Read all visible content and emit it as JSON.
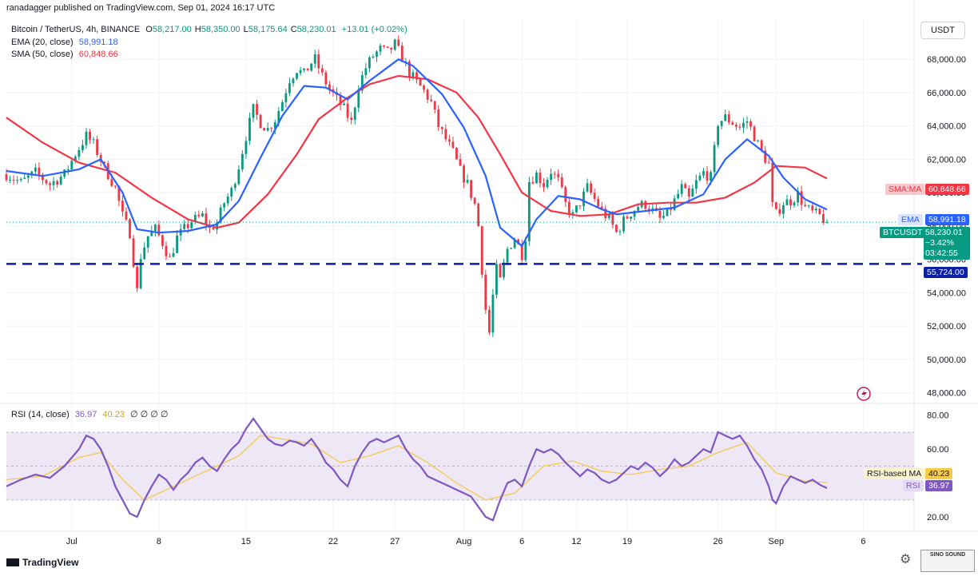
{
  "header": {
    "published_line": "ranadagger published on TradingView.com, Sep 01, 2024 16:17 UTC"
  },
  "legend": {
    "symbol": "Bitcoin / TetherUS, 4h, BINANCE",
    "ohlc": [
      {
        "k": "O",
        "v": "58,217.00"
      },
      {
        "k": "H",
        "v": "58,350.00"
      },
      {
        "k": "L",
        "v": "58,175.64"
      },
      {
        "k": "C",
        "v": "58,230.01"
      }
    ],
    "change": "+13.01 (+0.02%)",
    "ema_label": "EMA (20, close)",
    "ema_value": "58,991.18",
    "sma_label": "SMA (50, close)",
    "sma_value": "60,848.66"
  },
  "currency_button": "USDT",
  "price_tags": {
    "sma": {
      "label": "SMA:MA",
      "value": "60,848.66"
    },
    "ema": {
      "label": "EMA",
      "value": "58,991.18"
    },
    "last": {
      "label": "BTCUSDT",
      "value": "58,230.01",
      "change": "−3.42%",
      "countdown": "03:42:55"
    },
    "support": {
      "value": "55,724.00"
    }
  },
  "rsi_legend": {
    "label": "RSI (14, close)",
    "rsi": "36.97",
    "ma": "40.23",
    "extras": "∅ ∅ ∅ ∅"
  },
  "rsi_tags": {
    "ma_label": "RSI-based MA",
    "ma_value": "40.23",
    "rsi_label": "RSI",
    "rsi_value": "36.97"
  },
  "footer": {
    "brand": "TradingView"
  },
  "watermark_text": "SINO SOUND",
  "colors": {
    "up": "#089981",
    "down": "#f23645",
    "ema": "#2962ff",
    "sma": "#f23645",
    "support": "#0c1fa6",
    "rsi": "#7e57c2",
    "rsi_ma": "#f7c948",
    "band": "#ede7f6"
  },
  "chart_data": [
    {
      "type": "candlestick",
      "title": "Bitcoin / TetherUS, 4h, BINANCE",
      "x_tick_labels": [
        "Jul",
        "8",
        "15",
        "22",
        "27",
        "Aug",
        "6",
        "12",
        "19",
        "26",
        "Sep",
        "6"
      ],
      "y_ticks": [
        48000,
        50000,
        52000,
        54000,
        56000,
        58000,
        60000,
        62000,
        64000,
        66000,
        68000
      ],
      "y_tick_labels": [
        "48,000.00",
        "50,000.00",
        "52,000.00",
        "54,000.00",
        "56,000.00",
        "58,000.00",
        "60,000.00",
        "62,000.00",
        "64,000.00",
        "66,000.00",
        "68,000.00"
      ],
      "ylim": [
        47500,
        70500
      ],
      "support_level": 55724,
      "close_path": [
        [
          0,
          61100
        ],
        [
          4,
          60600
        ],
        [
          8,
          61200
        ],
        [
          12,
          60500
        ],
        [
          16,
          61100
        ],
        [
          19,
          62300
        ],
        [
          22,
          63400
        ],
        [
          24,
          62900
        ],
        [
          27,
          61500
        ],
        [
          30,
          60300
        ],
        [
          32,
          58600
        ],
        [
          34,
          57600
        ],
        [
          35,
          55900
        ],
        [
          36,
          54100
        ],
        [
          37,
          56200
        ],
        [
          39,
          57400
        ],
        [
          41,
          57800
        ],
        [
          43,
          57000
        ],
        [
          45,
          56000
        ],
        [
          47,
          57300
        ],
        [
          49,
          57800
        ],
        [
          51,
          58300
        ],
        [
          54,
          58600
        ],
        [
          56,
          57800
        ],
        [
          58,
          58200
        ],
        [
          60,
          59400
        ],
        [
          62,
          60100
        ],
        [
          64,
          61600
        ],
        [
          66,
          63400
        ],
        [
          68,
          65000
        ],
        [
          70,
          64200
        ],
        [
          72,
          63800
        ],
        [
          74,
          64400
        ],
        [
          76,
          65500
        ],
        [
          78,
          66800
        ],
        [
          80,
          67400
        ],
        [
          82,
          67100
        ],
        [
          84,
          67800
        ],
        [
          85,
          68000
        ],
        [
          87,
          67000
        ],
        [
          89,
          66200
        ],
        [
          91,
          65600
        ],
        [
          93,
          65000
        ],
        [
          95,
          64200
        ],
        [
          97,
          66400
        ],
        [
          99,
          67500
        ],
        [
          101,
          68200
        ],
        [
          103,
          68600
        ],
        [
          105,
          68400
        ],
        [
          107,
          68900
        ],
        [
          109,
          68100
        ],
        [
          111,
          67200
        ],
        [
          113,
          66600
        ],
        [
          115,
          66100
        ],
        [
          117,
          65400
        ],
        [
          119,
          64000
        ],
        [
          121,
          63200
        ],
        [
          123,
          62400
        ],
        [
          125,
          61300
        ],
        [
          127,
          60500
        ],
        [
          129,
          59300
        ],
        [
          130,
          58000
        ],
        [
          131,
          55400
        ],
        [
          132,
          53000
        ],
        [
          133,
          51600
        ],
        [
          134,
          53800
        ],
        [
          135,
          55400
        ],
        [
          136,
          54700
        ],
        [
          138,
          56600
        ],
        [
          140,
          57300
        ],
        [
          142,
          56300
        ],
        [
          143,
          57400
        ],
        [
          144,
          60700
        ],
        [
          146,
          61100
        ],
        [
          148,
          60500
        ],
        [
          150,
          61300
        ],
        [
          152,
          60700
        ],
        [
          154,
          59300
        ],
        [
          156,
          58600
        ],
        [
          158,
          59400
        ],
        [
          160,
          60300
        ],
        [
          162,
          59600
        ],
        [
          164,
          58900
        ],
        [
          166,
          58400
        ],
        [
          168,
          57600
        ],
        [
          170,
          58300
        ],
        [
          172,
          58800
        ],
        [
          174,
          59200
        ],
        [
          176,
          59300
        ],
        [
          178,
          58900
        ],
        [
          180,
          58400
        ],
        [
          182,
          58700
        ],
        [
          184,
          59500
        ],
        [
          186,
          60300
        ],
        [
          188,
          59600
        ],
        [
          190,
          60600
        ],
        [
          192,
          61200
        ],
        [
          194,
          60900
        ],
        [
          196,
          64200
        ],
        [
          198,
          64500
        ],
        [
          200,
          64200
        ],
        [
          202,
          63900
        ],
        [
          204,
          64300
        ],
        [
          206,
          63400
        ],
        [
          208,
          62400
        ],
        [
          210,
          61700
        ],
        [
          211,
          59200
        ],
        [
          212,
          58700
        ],
        [
          214,
          59400
        ],
        [
          216,
          59500
        ],
        [
          218,
          59900
        ],
        [
          220,
          59100
        ],
        [
          222,
          58800
        ],
        [
          224,
          58600
        ],
        [
          226,
          58230
        ]
      ],
      "ema_20": [
        [
          0,
          61300
        ],
        [
          10,
          61000
        ],
        [
          20,
          61400
        ],
        [
          26,
          62000
        ],
        [
          32,
          60000
        ],
        [
          36,
          57800
        ],
        [
          42,
          57600
        ],
        [
          50,
          57700
        ],
        [
          58,
          58100
        ],
        [
          64,
          59500
        ],
        [
          70,
          62100
        ],
        [
          76,
          64600
        ],
        [
          82,
          66400
        ],
        [
          88,
          66300
        ],
        [
          94,
          65600
        ],
        [
          100,
          66700
        ],
        [
          108,
          68000
        ],
        [
          112,
          67600
        ],
        [
          120,
          65900
        ],
        [
          126,
          63900
        ],
        [
          132,
          61000
        ],
        [
          136,
          57900
        ],
        [
          142,
          56800
        ],
        [
          146,
          58400
        ],
        [
          152,
          59800
        ],
        [
          158,
          59600
        ],
        [
          164,
          59000
        ],
        [
          168,
          58700
        ],
        [
          176,
          58900
        ],
        [
          184,
          59100
        ],
        [
          192,
          59900
        ],
        [
          198,
          62000
        ],
        [
          204,
          63200
        ],
        [
          210,
          62200
        ],
        [
          214,
          60900
        ],
        [
          220,
          59600
        ],
        [
          226,
          58991
        ]
      ],
      "sma_50": [
        [
          0,
          64500
        ],
        [
          10,
          63000
        ],
        [
          20,
          61800
        ],
        [
          30,
          61200
        ],
        [
          40,
          59700
        ],
        [
          50,
          58400
        ],
        [
          58,
          57900
        ],
        [
          64,
          58200
        ],
        [
          72,
          59900
        ],
        [
          80,
          62300
        ],
        [
          86,
          64400
        ],
        [
          94,
          65700
        ],
        [
          100,
          66500
        ],
        [
          108,
          67000
        ],
        [
          116,
          66800
        ],
        [
          124,
          66000
        ],
        [
          130,
          64500
        ],
        [
          136,
          62300
        ],
        [
          142,
          60000
        ],
        [
          150,
          58900
        ],
        [
          158,
          58600
        ],
        [
          166,
          58700
        ],
        [
          174,
          59300
        ],
        [
          182,
          59400
        ],
        [
          190,
          59400
        ],
        [
          198,
          59700
        ],
        [
          206,
          60600
        ],
        [
          212,
          61600
        ],
        [
          220,
          61500
        ],
        [
          226,
          60849
        ]
      ]
    },
    {
      "type": "line",
      "title": "RSI (14, close)",
      "y_tick_labels": [
        "20.00",
        "40.00",
        "60.00",
        "80.00"
      ],
      "ylim": [
        12,
        86
      ],
      "band": [
        30,
        70
      ],
      "mid": 50,
      "rsi": [
        [
          0,
          38
        ],
        [
          4,
          42
        ],
        [
          8,
          45
        ],
        [
          12,
          43
        ],
        [
          16,
          50
        ],
        [
          20,
          60
        ],
        [
          22,
          68
        ],
        [
          24,
          66
        ],
        [
          26,
          60
        ],
        [
          28,
          50
        ],
        [
          30,
          38
        ],
        [
          32,
          30
        ],
        [
          34,
          22
        ],
        [
          36,
          20
        ],
        [
          38,
          30
        ],
        [
          40,
          38
        ],
        [
          42,
          45
        ],
        [
          44,
          42
        ],
        [
          46,
          36
        ],
        [
          48,
          42
        ],
        [
          50,
          46
        ],
        [
          52,
          52
        ],
        [
          54,
          55
        ],
        [
          56,
          50
        ],
        [
          58,
          47
        ],
        [
          60,
          54
        ],
        [
          62,
          60
        ],
        [
          64,
          64
        ],
        [
          66,
          72
        ],
        [
          68,
          78
        ],
        [
          70,
          72
        ],
        [
          72,
          66
        ],
        [
          74,
          63
        ],
        [
          76,
          62
        ],
        [
          78,
          65
        ],
        [
          80,
          64
        ],
        [
          82,
          62
        ],
        [
          84,
          66
        ],
        [
          86,
          60
        ],
        [
          88,
          52
        ],
        [
          90,
          48
        ],
        [
          92,
          42
        ],
        [
          94,
          38
        ],
        [
          96,
          50
        ],
        [
          98,
          58
        ],
        [
          100,
          64
        ],
        [
          102,
          66
        ],
        [
          104,
          64
        ],
        [
          106,
          66
        ],
        [
          108,
          68
        ],
        [
          110,
          60
        ],
        [
          112,
          54
        ],
        [
          114,
          50
        ],
        [
          116,
          44
        ],
        [
          118,
          42
        ],
        [
          120,
          40
        ],
        [
          122,
          38
        ],
        [
          124,
          36
        ],
        [
          126,
          34
        ],
        [
          128,
          32
        ],
        [
          130,
          26
        ],
        [
          132,
          20
        ],
        [
          134,
          18
        ],
        [
          136,
          30
        ],
        [
          138,
          40
        ],
        [
          140,
          42
        ],
        [
          142,
          38
        ],
        [
          144,
          50
        ],
        [
          146,
          60
        ],
        [
          148,
          58
        ],
        [
          150,
          60
        ],
        [
          152,
          57
        ],
        [
          154,
          52
        ],
        [
          156,
          48
        ],
        [
          158,
          44
        ],
        [
          160,
          48
        ],
        [
          162,
          46
        ],
        [
          164,
          42
        ],
        [
          166,
          40
        ],
        [
          168,
          42
        ],
        [
          170,
          46
        ],
        [
          172,
          50
        ],
        [
          174,
          48
        ],
        [
          176,
          52
        ],
        [
          178,
          49
        ],
        [
          180,
          44
        ],
        [
          182,
          48
        ],
        [
          184,
          54
        ],
        [
          186,
          50
        ],
        [
          188,
          52
        ],
        [
          190,
          56
        ],
        [
          192,
          60
        ],
        [
          194,
          58
        ],
        [
          196,
          70
        ],
        [
          198,
          68
        ],
        [
          200,
          66
        ],
        [
          202,
          68
        ],
        [
          204,
          62
        ],
        [
          206,
          54
        ],
        [
          208,
          48
        ],
        [
          210,
          38
        ],
        [
          211,
          30
        ],
        [
          212,
          28
        ],
        [
          214,
          38
        ],
        [
          216,
          44
        ],
        [
          218,
          42
        ],
        [
          220,
          40
        ],
        [
          222,
          42
        ],
        [
          224,
          39
        ],
        [
          226,
          36.97
        ]
      ],
      "rsi_ma": [
        [
          0,
          42
        ],
        [
          10,
          44
        ],
        [
          20,
          55
        ],
        [
          26,
          58
        ],
        [
          32,
          42
        ],
        [
          38,
          30
        ],
        [
          46,
          38
        ],
        [
          56,
          48
        ],
        [
          64,
          56
        ],
        [
          70,
          68
        ],
        [
          76,
          66
        ],
        [
          84,
          63
        ],
        [
          92,
          52
        ],
        [
          100,
          56
        ],
        [
          108,
          62
        ],
        [
          116,
          52
        ],
        [
          124,
          40
        ],
        [
          132,
          30
        ],
        [
          140,
          34
        ],
        [
          148,
          50
        ],
        [
          156,
          53
        ],
        [
          164,
          47
        ],
        [
          172,
          45
        ],
        [
          180,
          48
        ],
        [
          188,
          50
        ],
        [
          196,
          58
        ],
        [
          204,
          64
        ],
        [
          212,
          46
        ],
        [
          220,
          41
        ],
        [
          226,
          40.23
        ]
      ]
    }
  ]
}
